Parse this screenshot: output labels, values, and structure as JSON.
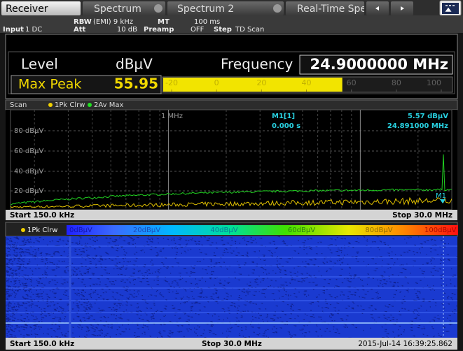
{
  "tabs": [
    "Receiver",
    "Spectrum",
    "Spectrum 2",
    "Real-Time Spectr"
  ],
  "settings": {
    "rbw_label": "RBW",
    "rbw_value": "(EMI) 9 kHz",
    "mt_label": "MT",
    "mt_value": "100 ms",
    "input_label": "Input",
    "input_value": "1 DC",
    "att_label": "Att",
    "att_value": "10 dB",
    "preamp_label": "Preamp",
    "preamp_value": "OFF",
    "step_label": "Step",
    "step_value": "TD Scan"
  },
  "meter": {
    "level_label": "Level",
    "unit": "dBµV",
    "frequency_label": "Frequency",
    "frequency": "24.9000000 MHz",
    "detector": "Max Peak",
    "value": 55.95,
    "scale": [
      -20,
      0,
      20,
      40,
      60,
      80,
      100
    ]
  },
  "scan": {
    "title": "Scan",
    "traces": [
      "1Pk Clrw",
      "2Av Max"
    ],
    "y_labels": [
      "80 dBµV",
      "60 dBµV",
      "40 dBµV",
      "20 dBµV"
    ],
    "grid_label": "1 MHz",
    "marker": {
      "name": "M1[1]",
      "level": "5.57 dBµV",
      "time": "0.000 s",
      "frequency": "24.891000 MHz",
      "label": "M1"
    },
    "start": "Start 150.0 kHz",
    "stop": "Stop 30.0 MHz"
  },
  "spectrogram": {
    "trace": "1Pk Clrw",
    "scale_labels": [
      "0dBµV",
      "20dBµV",
      "40dBµV",
      "60dBµV",
      "80dBµV",
      "100dBµV"
    ],
    "start": "Start 150.0 kHz",
    "stop": "Stop 30.0 MHz",
    "timestamp": "2015-Jul-14 16:39:25.862"
  }
}
